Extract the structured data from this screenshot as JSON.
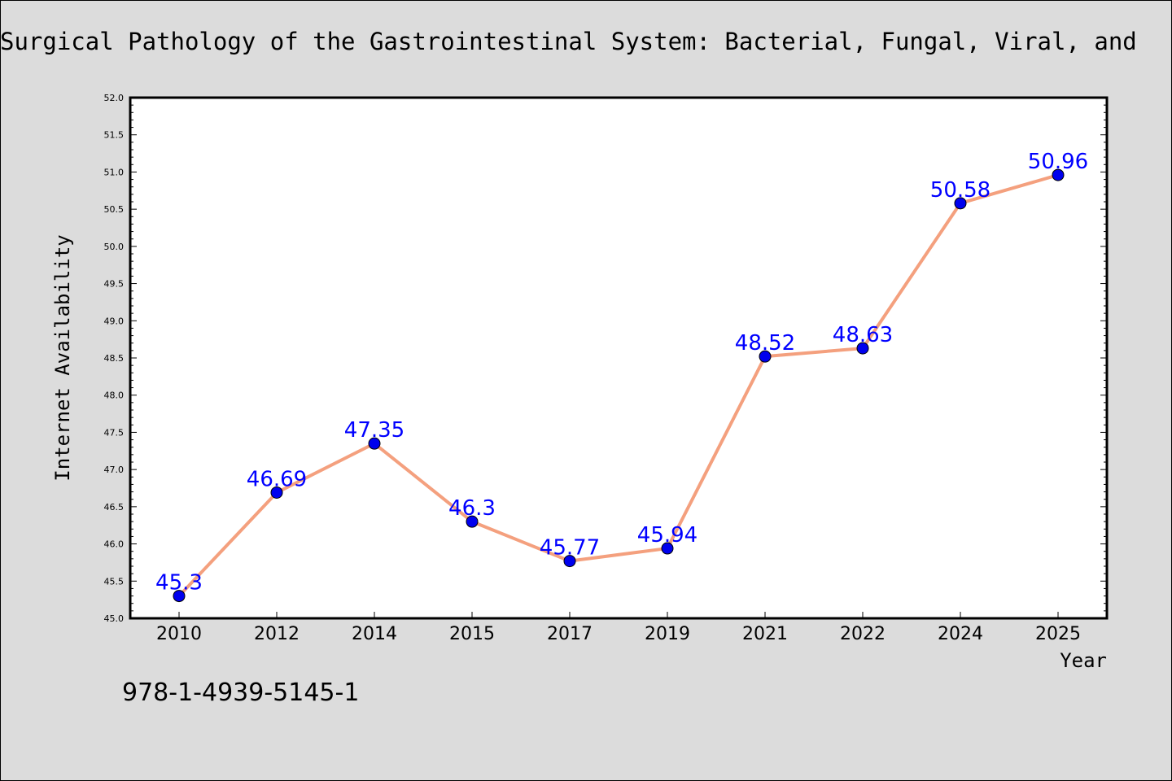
{
  "chart_data": {
    "type": "line",
    "title": "Surgical Pathology of the Gastrointestinal System: Bacterial, Fungal, Viral, and",
    "xlabel": "Year",
    "ylabel": "Internet Availability",
    "categories": [
      "2010",
      "2012",
      "2014",
      "2015",
      "2017",
      "2019",
      "2021",
      "2022",
      "2024",
      "2025"
    ],
    "values": [
      45.3,
      46.69,
      47.35,
      46.3,
      45.77,
      45.94,
      48.52,
      48.63,
      50.58,
      50.96
    ],
    "data_labels": [
      "45.3",
      "46.69",
      "47.35",
      "46.3",
      "45.77",
      "45.94",
      "48.52",
      "48.63",
      "50.58",
      "50.96"
    ],
    "ylim": [
      45.0,
      52.0
    ],
    "yticks": [
      "45.0",
      "45.5",
      "46.0",
      "46.5",
      "47.0",
      "47.5",
      "48.0",
      "48.5",
      "49.0",
      "49.5",
      "50.0",
      "50.5",
      "51.0",
      "51.5",
      "52.0"
    ],
    "grid": false,
    "line_color": "#f4a07e",
    "marker_color": "#0000ee",
    "label_color": "#0000ff"
  },
  "footer": {
    "isbn": "978-1-4939-5145-1"
  }
}
